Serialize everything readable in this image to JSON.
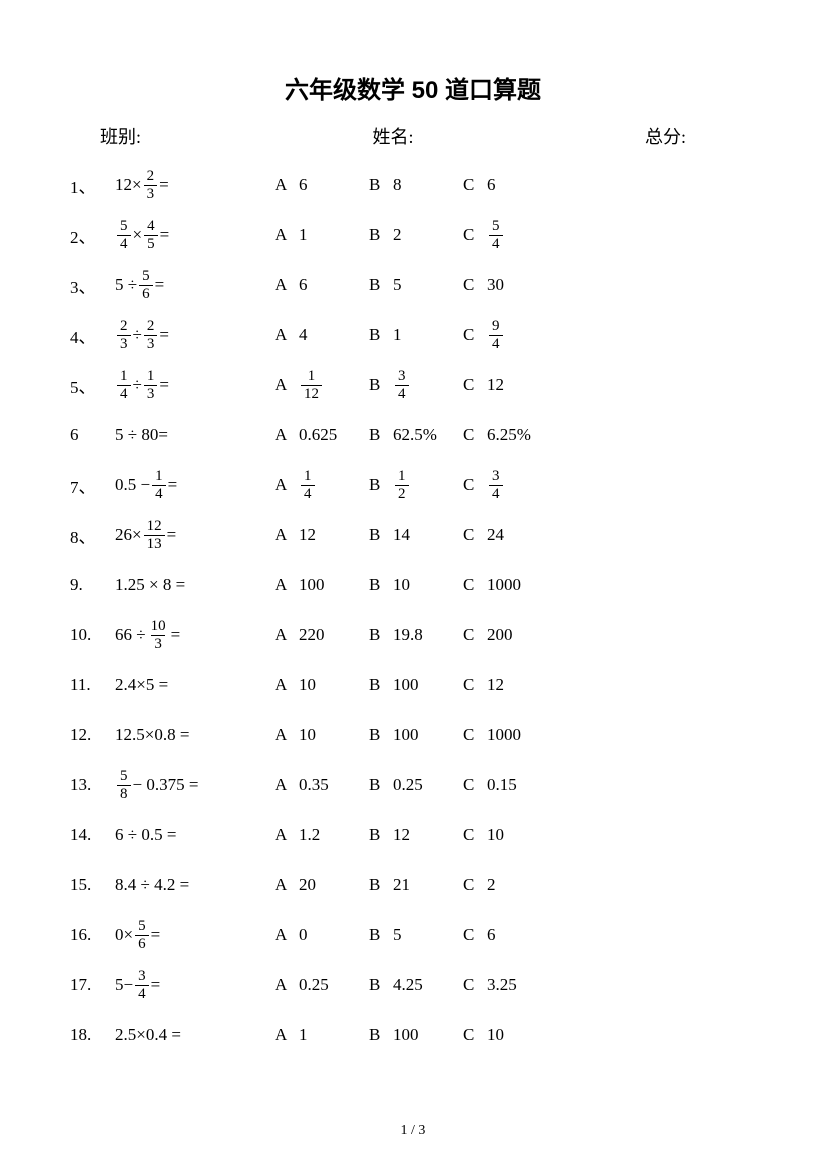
{
  "title": "六年级数学 50 道口算题",
  "info": {
    "class_label": "班别:",
    "name_label": "姓名:",
    "score_label": "总分:"
  },
  "option_labels": [
    "A",
    "B",
    "C"
  ],
  "questions": [
    {
      "num": "1、",
      "expr": [
        {
          "t": "12×"
        },
        {
          "frac": [
            "2",
            "3"
          ]
        },
        {
          "t": " ="
        }
      ],
      "opts": [
        [
          {
            "t": "6"
          }
        ],
        [
          {
            "t": "8"
          }
        ],
        [
          {
            "t": "6"
          }
        ]
      ]
    },
    {
      "num": "2、",
      "expr": [
        {
          "frac": [
            "5",
            "4"
          ]
        },
        {
          "t": "×"
        },
        {
          "frac": [
            "4",
            "5"
          ]
        },
        {
          "t": " ="
        }
      ],
      "opts": [
        [
          {
            "t": "1"
          }
        ],
        [
          {
            "t": "2"
          }
        ],
        [
          {
            "frac": [
              "5",
              "4"
            ]
          }
        ]
      ]
    },
    {
      "num": "3、",
      "expr": [
        {
          "t": "5 ÷"
        },
        {
          "frac": [
            "5",
            "6"
          ]
        },
        {
          "t": " ="
        }
      ],
      "opts": [
        [
          {
            "t": "6"
          }
        ],
        [
          {
            "t": "5"
          }
        ],
        [
          {
            "t": "30"
          }
        ]
      ]
    },
    {
      "num": "4、",
      "expr": [
        {
          "frac": [
            "2",
            "3"
          ]
        },
        {
          "t": "÷"
        },
        {
          "frac": [
            "2",
            "3"
          ]
        },
        {
          "t": " ="
        }
      ],
      "opts": [
        [
          {
            "t": "4"
          }
        ],
        [
          {
            "t": "1"
          }
        ],
        [
          {
            "frac": [
              "9",
              "4"
            ]
          }
        ]
      ]
    },
    {
      "num": "5、",
      "expr": [
        {
          "frac": [
            "1",
            "4"
          ]
        },
        {
          "t": "÷"
        },
        {
          "frac": [
            "1",
            "3"
          ]
        },
        {
          "t": " ="
        }
      ],
      "opts": [
        [
          {
            "frac": [
              "1",
              "12"
            ]
          }
        ],
        [
          {
            "frac": [
              "3",
              "4"
            ]
          }
        ],
        [
          {
            "t": "12"
          }
        ]
      ]
    },
    {
      "num": "6",
      "expr": [
        {
          "t": "5 ÷ 80="
        }
      ],
      "opts": [
        [
          {
            "t": "0.625"
          }
        ],
        [
          {
            "t": "62.5%"
          }
        ],
        [
          {
            "t": "6.25%"
          }
        ]
      ]
    },
    {
      "num": "7、",
      "expr": [
        {
          "t": "0.5 −"
        },
        {
          "frac": [
            "1",
            "4"
          ]
        },
        {
          "t": " ="
        }
      ],
      "opts": [
        [
          {
            "frac": [
              "1",
              "4"
            ]
          }
        ],
        [
          {
            "frac": [
              "1",
              "2"
            ]
          }
        ],
        [
          {
            "frac": [
              "3",
              "4"
            ]
          }
        ]
      ]
    },
    {
      "num": "8、",
      "expr": [
        {
          "t": "26×"
        },
        {
          "frac": [
            "12",
            "13"
          ]
        },
        {
          "t": " ="
        }
      ],
      "opts": [
        [
          {
            "t": "12"
          }
        ],
        [
          {
            "t": "14"
          }
        ],
        [
          {
            "t": "24"
          }
        ]
      ]
    },
    {
      "num": "9.",
      "expr": [
        {
          "t": "1.25 × 8 ="
        }
      ],
      "opts": [
        [
          {
            "t": "100"
          }
        ],
        [
          {
            "t": "10"
          }
        ],
        [
          {
            "t": "1000"
          }
        ]
      ]
    },
    {
      "num": "10.",
      "expr": [
        {
          "t": "66 ÷"
        },
        {
          "frac": [
            "10",
            "3"
          ]
        },
        {
          "t": " ="
        }
      ],
      "opts": [
        [
          {
            "t": "220"
          }
        ],
        [
          {
            "t": "19.8"
          }
        ],
        [
          {
            "t": "200"
          }
        ]
      ]
    },
    {
      "num": "11.",
      "expr": [
        {
          "t": "2.4×5 ="
        }
      ],
      "opts": [
        [
          {
            "t": "10"
          }
        ],
        [
          {
            "t": "100"
          }
        ],
        [
          {
            "t": "12"
          }
        ]
      ]
    },
    {
      "num": "12.",
      "expr": [
        {
          "t": "12.5×0.8 ="
        }
      ],
      "opts": [
        [
          {
            "t": "10"
          }
        ],
        [
          {
            "t": "100"
          }
        ],
        [
          {
            "t": "1000"
          }
        ]
      ]
    },
    {
      "num": "13.",
      "expr": [
        {
          "frac": [
            "5",
            "8"
          ]
        },
        {
          "t": "− 0.375 ="
        }
      ],
      "opts": [
        [
          {
            "t": "0.35"
          }
        ],
        [
          {
            "t": "0.25"
          }
        ],
        [
          {
            "t": "0.15"
          }
        ]
      ]
    },
    {
      "num": "14.",
      "expr": [
        {
          "t": "6 ÷ 0.5 ="
        }
      ],
      "opts": [
        [
          {
            "t": "1.2"
          }
        ],
        [
          {
            "t": "12"
          }
        ],
        [
          {
            "t": "10"
          }
        ]
      ]
    },
    {
      "num": "15.",
      "expr": [
        {
          "t": "8.4 ÷ 4.2 ="
        }
      ],
      "opts": [
        [
          {
            "t": "20"
          }
        ],
        [
          {
            "t": "21"
          }
        ],
        [
          {
            "t": "2"
          }
        ]
      ]
    },
    {
      "num": "16.",
      "expr": [
        {
          "t": "0×"
        },
        {
          "frac": [
            "5",
            "6"
          ]
        },
        {
          "t": " ="
        }
      ],
      "opts": [
        [
          {
            "t": "0"
          }
        ],
        [
          {
            "t": "5"
          }
        ],
        [
          {
            "t": "6"
          }
        ]
      ]
    },
    {
      "num": "17.",
      "expr": [
        {
          "t": "5−"
        },
        {
          "frac": [
            "3",
            "4"
          ]
        },
        {
          "t": " ="
        }
      ],
      "opts": [
        [
          {
            "t": "0.25"
          }
        ],
        [
          {
            "t": "4.25"
          }
        ],
        [
          {
            "t": "3.25"
          }
        ]
      ]
    },
    {
      "num": "18.",
      "expr": [
        {
          "t": "2.5×0.4 ="
        }
      ],
      "opts": [
        [
          {
            "t": "1"
          }
        ],
        [
          {
            "t": "100"
          }
        ],
        [
          {
            "t": "10"
          }
        ]
      ]
    }
  ],
  "footer": "1 / 3"
}
